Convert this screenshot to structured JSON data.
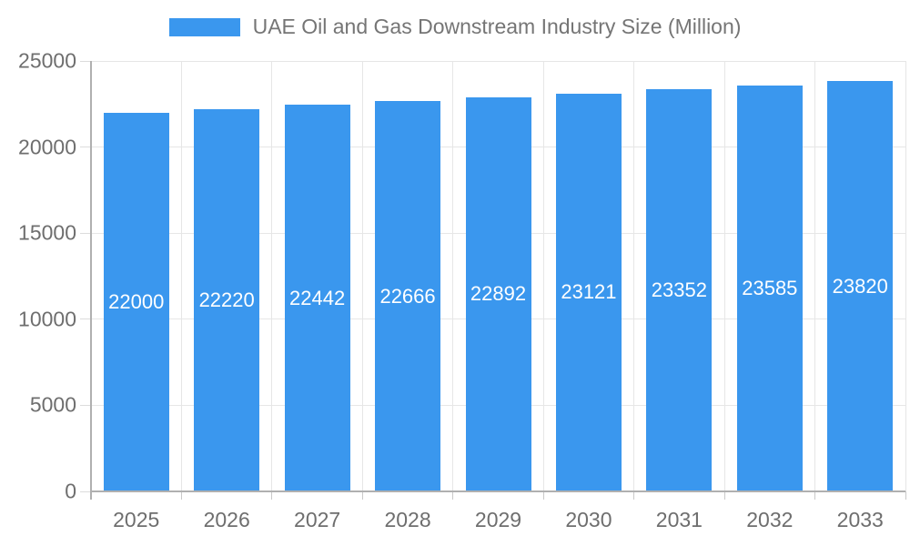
{
  "chart_data": {
    "type": "bar",
    "title": "UAE Oil and Gas Downstream Industry Size (Million)",
    "categories": [
      "2025",
      "2026",
      "2027",
      "2028",
      "2029",
      "2030",
      "2031",
      "2032",
      "2033"
    ],
    "series": [
      {
        "name": "UAE Oil and Gas Downstream Industry Size (Million)",
        "values": [
          22000,
          22220,
          22442,
          22666,
          22892,
          23121,
          23352,
          23585,
          23820
        ]
      }
    ],
    "bar_labels": [
      "22000",
      "22220",
      "22442",
      "22666",
      "22892",
      "23121",
      "23352",
      "23585",
      "23820"
    ],
    "xlabel": "",
    "ylabel": "",
    "ylim": [
      0,
      25000
    ],
    "yticks": [
      0,
      5000,
      10000,
      15000,
      20000,
      25000
    ],
    "ytick_labels": [
      "0",
      "5000",
      "10000",
      "15000",
      "20000",
      "25000"
    ],
    "grid": "on",
    "legend_position": "top-center",
    "colors": {
      "bar": "#3a97ee",
      "bar_label": "#ffffff",
      "axis_text": "#6e6e6e",
      "title_text": "#757575",
      "gridline": "#e6e6e6",
      "axis_line": "#b0b0b0"
    }
  }
}
